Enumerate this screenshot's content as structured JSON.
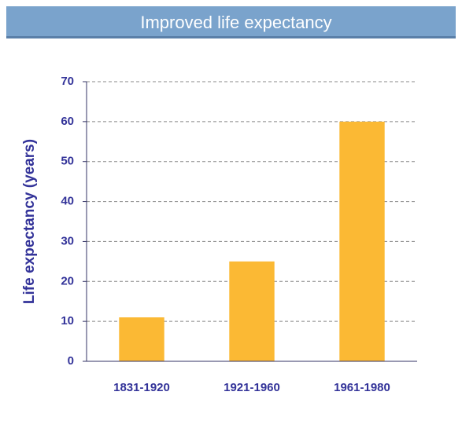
{
  "chart_data": {
    "type": "bar",
    "title": "Improved life expectancy",
    "y_label": "Life expectancy (years)",
    "categories": [
      "1831-1920",
      "1921-1960",
      "1961-1980"
    ],
    "values": [
      11,
      25,
      60
    ],
    "color": "#fbb934",
    "ylim": [
      0,
      70
    ],
    "yticks": [
      0,
      10,
      20,
      30,
      40,
      50,
      60,
      70
    ],
    "grid": true
  }
}
